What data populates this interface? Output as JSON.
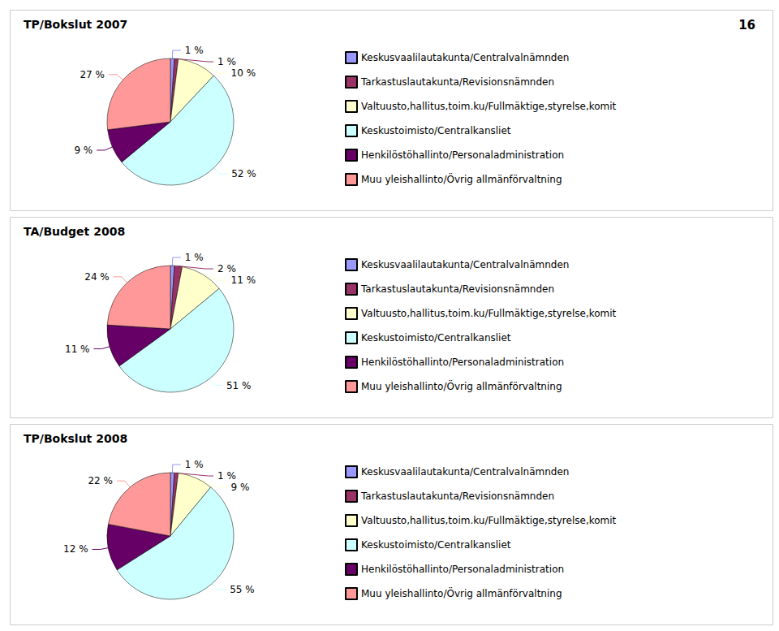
{
  "chart_data": [
    {
      "type": "pie",
      "title": "TP/Bokslut 2007",
      "annotations": [
        "16"
      ],
      "categories": [
        "Keskusvaalilautakunta/Centralvalnämnden",
        "Tarkastuslautakunta/Revisionsnämnden",
        "Valtuusto,hallitus,toim.ku/Fullmäktige,styrelse,komit",
        "Keskustoimisto/Centralkansliet",
        "Henkilöstöhallinto/Personaladministration",
        "Muu yleishallinto/Övrig allmänförvaltning"
      ],
      "values": [
        1,
        1,
        10,
        52,
        9,
        27
      ],
      "value_labels": [
        "1 %",
        "1 %",
        "10 %",
        "52 %",
        "9 %",
        "27 %"
      ],
      "colors": [
        "#9999ff",
        "#993366",
        "#ffffcc",
        "#ccffff",
        "#660066",
        "#ff9999"
      ],
      "legend": "right",
      "data_labels": true
    },
    {
      "type": "pie",
      "title": "TA/Budget 2008",
      "categories": [
        "Keskusvaalilautakunta/Centralvalnämnden",
        "Tarkastuslautakunta/Revisionsnämnden",
        "Valtuusto,hallitus,toim.ku/Fullmäktige,styrelse,komit",
        "Keskustoimisto/Centralkansliet",
        "Henkilöstöhallinto/Personaladministration",
        "Muu yleishallinto/Övrig allmänförvaltning"
      ],
      "values": [
        1,
        2,
        11,
        51,
        11,
        24
      ],
      "value_labels": [
        "1 %",
        "2 %",
        "11 %",
        "51 %",
        "11 %",
        "24 %"
      ],
      "colors": [
        "#9999ff",
        "#993366",
        "#ffffcc",
        "#ccffff",
        "#660066",
        "#ff9999"
      ],
      "legend": "right",
      "data_labels": true
    },
    {
      "type": "pie",
      "title": "TP/Bokslut 2008",
      "categories": [
        "Keskusvaalilautakunta/Centralvalnämnden",
        "Tarkastuslautakunta/Revisionsnämnden",
        "Valtuusto,hallitus,toim.ku/Fullmäktige,styrelse,komit",
        "Keskustoimisto/Centralkansliet",
        "Henkilöstöhallinto/Personaladministration",
        "Muu yleishallinto/Övrig allmänförvaltning"
      ],
      "values": [
        1,
        1,
        9,
        55,
        12,
        22
      ],
      "value_labels": [
        "1 %",
        "1 %",
        "9 %",
        "55 %",
        "12 %",
        "22 %"
      ],
      "colors": [
        "#9999ff",
        "#993366",
        "#ffffcc",
        "#ccffff",
        "#660066",
        "#ff9999"
      ],
      "legend": "right",
      "data_labels": true
    }
  ]
}
